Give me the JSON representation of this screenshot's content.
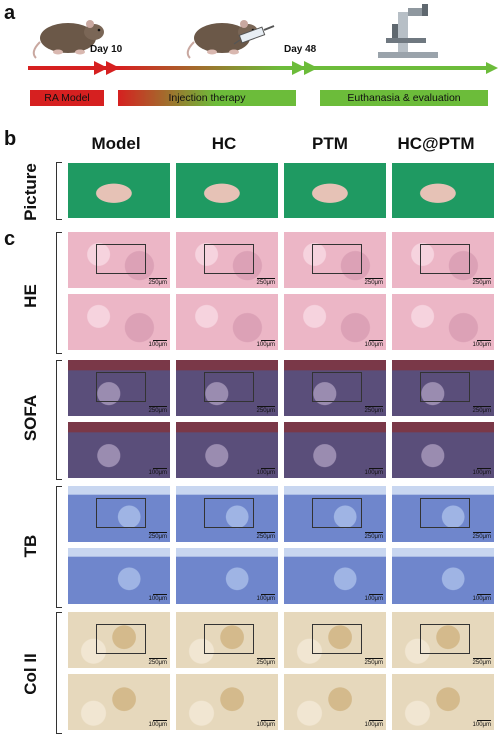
{
  "panels": {
    "a": "a",
    "b": "b",
    "c": "c"
  },
  "timeline": {
    "day1": "Day 10",
    "day2": "Day 48",
    "stage1": "RA Model",
    "stage2": "Injection therapy",
    "stage3": "Euthanasia & evaluation",
    "colors": {
      "red": "#d62020",
      "green": "#6cbc3a"
    }
  },
  "columns": [
    "Model",
    "HC",
    "PTM",
    "HC@PTM"
  ],
  "rows": {
    "picture": "Picture",
    "he": "HE",
    "sofa": "SOFA",
    "tb": "TB",
    "col2": "Col II"
  },
  "scale": {
    "low": "250μm",
    "high": "100μm"
  },
  "stain_colors": {
    "picture": "#1f9a62",
    "he": "#ecb6c6",
    "sofa": "#5a4e7a",
    "tb": "#6f86cc",
    "col2": "#e6d8bc"
  },
  "icons": [
    "rat-icon",
    "syringe-icon",
    "microscope-icon"
  ]
}
